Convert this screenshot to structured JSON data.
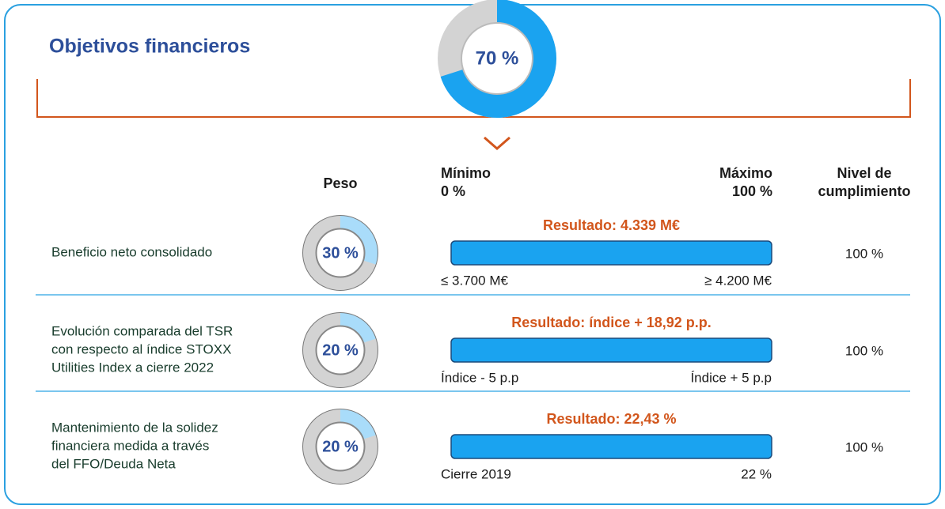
{
  "header": {
    "title": "Objetivos financieros",
    "total": {
      "value": 70,
      "label": "70 %"
    }
  },
  "columns": {
    "weight": "Peso",
    "min": [
      "Mínimo",
      "0 %"
    ],
    "max": [
      "Máximo",
      "100 %"
    ],
    "compliance": [
      "Nivel de",
      "cumplimiento"
    ]
  },
  "rows": [
    {
      "label": [
        "Beneficio neto consolidado"
      ],
      "weight": {
        "value": 30,
        "label": "30 %"
      },
      "result": "Resultado: 4.339 M€",
      "min": "≤ 3.700 M€",
      "max": "≥ 4.200 M€",
      "compliance": {
        "value": 100,
        "label": "100 %"
      }
    },
    {
      "label": [
        "Evolución comparada del TSR",
        "con respecto al índice STOXX",
        "Utilities Index a cierre 2022"
      ],
      "weight": {
        "value": 20,
        "label": "20 %"
      },
      "result": "Resultado: índice + 18,92 p.p.",
      "min": "Índice - 5 p.p",
      "max": "Índice + 5 p.p",
      "compliance": {
        "value": 100,
        "label": "100 %"
      }
    },
    {
      "label": [
        "Mantenimiento de la solidez",
        "financiera medida a través",
        "del FFO/Deuda Neta"
      ],
      "weight": {
        "value": 20,
        "label": "20 %"
      },
      "result": "Resultado: 22,43 %",
      "min": "Cierre 2019",
      "max": "22 %",
      "compliance": {
        "value": 100,
        "label": "100 %"
      }
    }
  ]
}
